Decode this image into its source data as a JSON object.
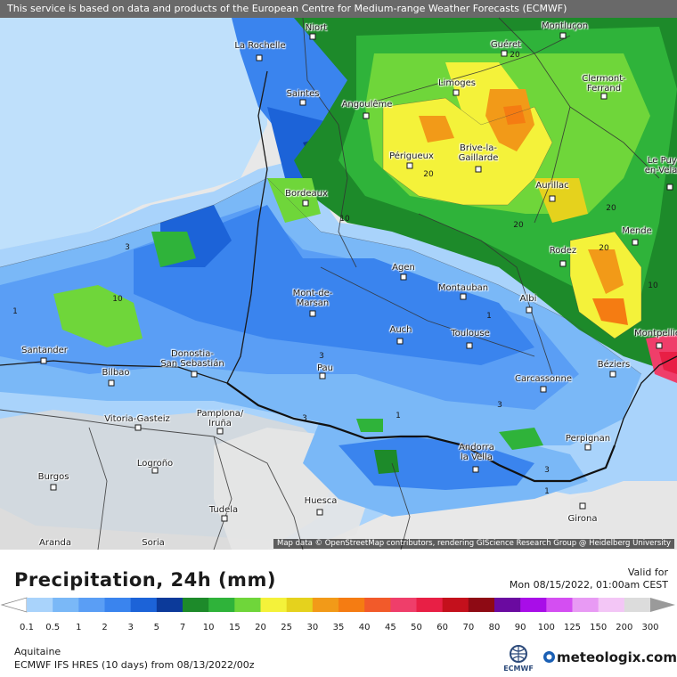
{
  "map": {
    "disclaimer": "This service is based on data and products of the European Centre for Medium-range Weather Forecasts (ECMWF)",
    "attribution": "Map data © OpenStreetMap contributors, rendering GIScience Research Group @ Heidelberg University",
    "cities": [
      {
        "name": "Niort"
      },
      {
        "name": "La Rochelle"
      },
      {
        "name": "Saintes"
      },
      {
        "name": "Angoulême"
      },
      {
        "name": "Guéret"
      },
      {
        "name": "Montluçon"
      },
      {
        "name": "Limoges"
      },
      {
        "name": "Clermont-\nFerrand"
      },
      {
        "name": "Périgueux"
      },
      {
        "name": "Brive-la-\nGaillarde"
      },
      {
        "name": "Aurillac"
      },
      {
        "name": "Le Puy-\nen-Velay"
      },
      {
        "name": "Bordeaux"
      },
      {
        "name": "Mende"
      },
      {
        "name": "Rodez"
      },
      {
        "name": "Agen"
      },
      {
        "name": "Montauban"
      },
      {
        "name": "Albi"
      },
      {
        "name": "Mont-de-\nMarsan"
      },
      {
        "name": "Auch"
      },
      {
        "name": "Toulouse"
      },
      {
        "name": "Montpellier"
      },
      {
        "name": "Santander"
      },
      {
        "name": "Bilbao"
      },
      {
        "name": "Donostia-\nSan Sebastián"
      },
      {
        "name": "Pau"
      },
      {
        "name": "Béziers"
      },
      {
        "name": "Carcassonne"
      },
      {
        "name": "Vitoria-Gasteiz"
      },
      {
        "name": "Pamplona/\nIruña"
      },
      {
        "name": "Perpignan"
      },
      {
        "name": "Andorra\nla Vella"
      },
      {
        "name": "Burgos"
      },
      {
        "name": "Logroño"
      },
      {
        "name": "Tudela"
      },
      {
        "name": "Huesca"
      },
      {
        "name": "Girona"
      },
      {
        "name": "Aranda"
      },
      {
        "name": "Soria"
      },
      {
        "name": "Rodez"
      }
    ],
    "contour_labels": [
      "20",
      "20",
      "20",
      "10",
      "3",
      "10",
      "1",
      "20",
      "20",
      "10",
      "1",
      "3",
      "3",
      "1",
      "1",
      "3",
      "3"
    ]
  },
  "legend": {
    "title": "Precipitation, 24h (mm)",
    "valid_label": "Valid for",
    "valid_time": "Mon 08/15/2022, 01:00am CEST",
    "levels": [
      "0.1",
      "0.5",
      "1",
      "2",
      "3",
      "5",
      "7",
      "10",
      "15",
      "20",
      "25",
      "30",
      "35",
      "40",
      "45",
      "50",
      "60",
      "70",
      "80",
      "90",
      "100",
      "125",
      "150",
      "200",
      "300"
    ],
    "colors": [
      "#a9d3fb",
      "#7ab8f7",
      "#5a9ef5",
      "#3a84ee",
      "#1c63d8",
      "#0c3a9a",
      "#1d8a2a",
      "#2fb33a",
      "#6fd63a",
      "#f4f23a",
      "#e5d21d",
      "#f29a18",
      "#f57c12",
      "#f25a2a",
      "#ef3e6a",
      "#e81f45",
      "#c4101c",
      "#8e0a14",
      "#6a0aa0",
      "#a80de8",
      "#d44ef2",
      "#e89af4",
      "#f3c6f6",
      "#dcdcdc"
    ],
    "region": "Aquitaine",
    "model": "ECMWF IFS HRES (10 days) from 08/13/2022/00z",
    "ecmwf_logo_text": "ECMWF",
    "brand": "meteologix.com"
  }
}
